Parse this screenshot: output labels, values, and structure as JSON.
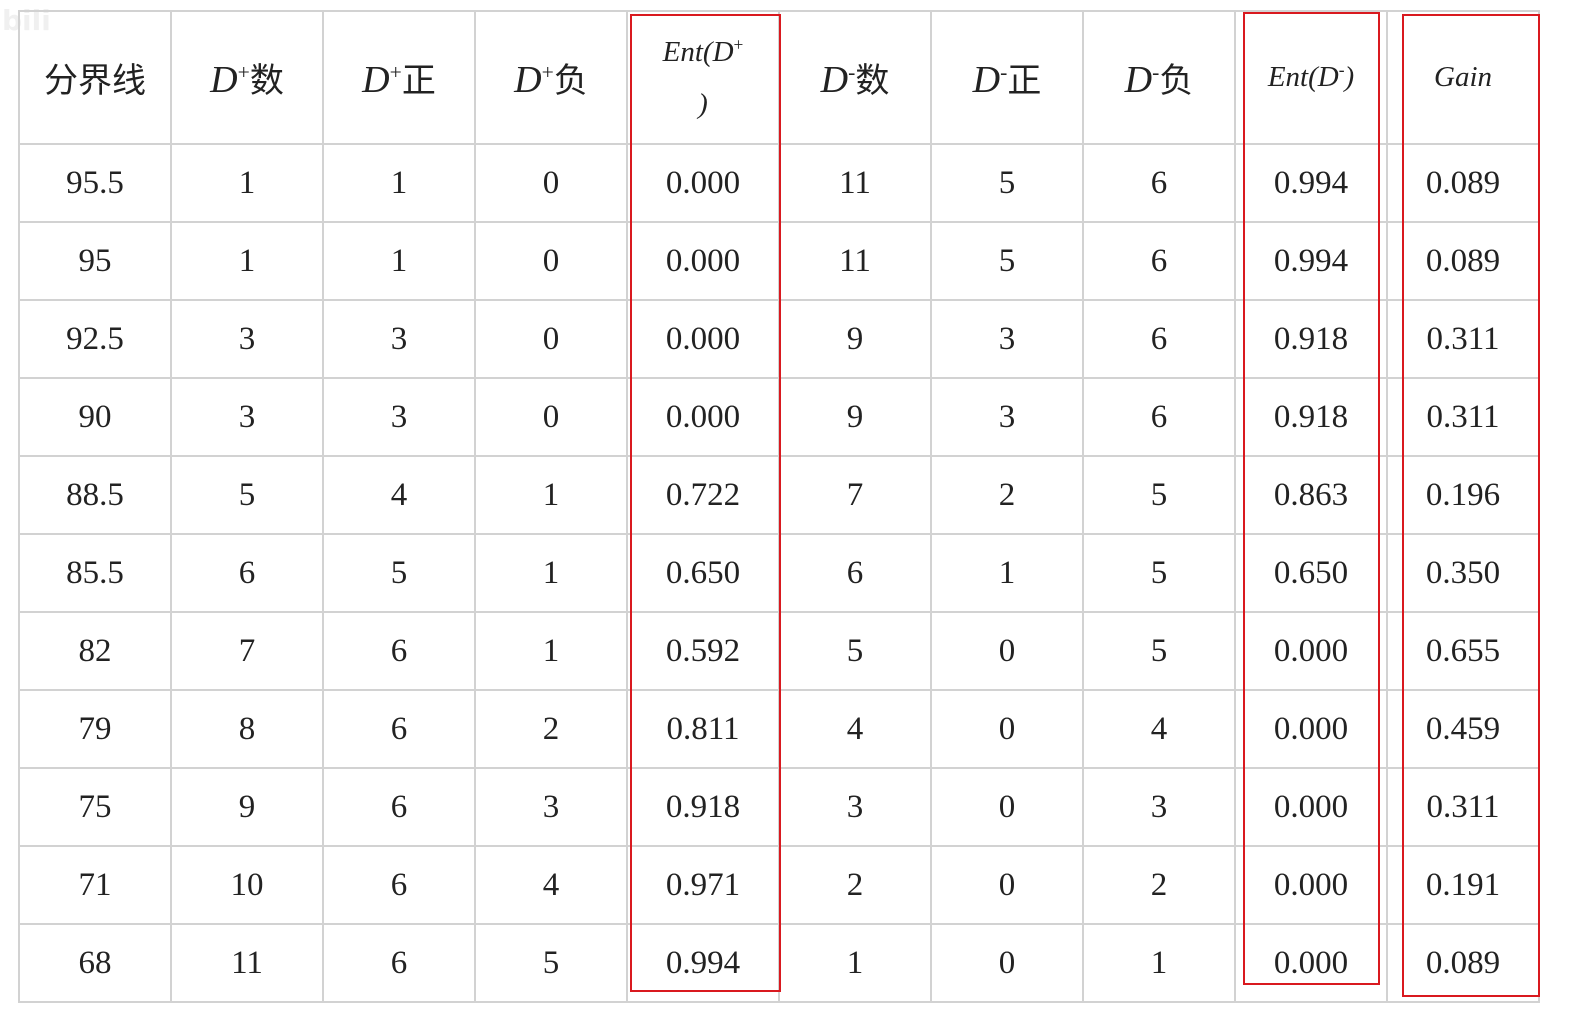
{
  "watermark": "bili",
  "header": {
    "split": "分界线",
    "dplus": "D",
    "dminus": "D",
    "plus": "+",
    "minus": "-",
    "count": "数",
    "pos": "正",
    "neg": "负",
    "ent_plus_a": "Ent(D",
    "ent_plus_b": "+",
    "ent_plus_c": ")",
    "ent_minus": "Ent(D",
    "ent_minus_sup": "-",
    "ent_minus_close": ")",
    "gain": "Gain"
  },
  "rows": [
    [
      "95.5",
      "1",
      "1",
      "0",
      "0.000",
      "11",
      "5",
      "6",
      "0.994",
      "0.089"
    ],
    [
      "95",
      "1",
      "1",
      "0",
      "0.000",
      "11",
      "5",
      "6",
      "0.994",
      "0.089"
    ],
    [
      "92.5",
      "3",
      "3",
      "0",
      "0.000",
      "9",
      "3",
      "6",
      "0.918",
      "0.311"
    ],
    [
      "90",
      "3",
      "3",
      "0",
      "0.000",
      "9",
      "3",
      "6",
      "0.918",
      "0.311"
    ],
    [
      "88.5",
      "5",
      "4",
      "1",
      "0.722",
      "7",
      "2",
      "5",
      "0.863",
      "0.196"
    ],
    [
      "85.5",
      "6",
      "5",
      "1",
      "0.650",
      "6",
      "1",
      "5",
      "0.650",
      "0.350"
    ],
    [
      "82",
      "7",
      "6",
      "1",
      "0.592",
      "5",
      "0",
      "5",
      "0.000",
      "0.655"
    ],
    [
      "79",
      "8",
      "6",
      "2",
      "0.811",
      "4",
      "0",
      "4",
      "0.000",
      "0.459"
    ],
    [
      "75",
      "9",
      "6",
      "3",
      "0.918",
      "3",
      "0",
      "3",
      "0.000",
      "0.311"
    ],
    [
      "71",
      "10",
      "6",
      "4",
      "0.971",
      "2",
      "0",
      "2",
      "0.000",
      "0.191"
    ],
    [
      "68",
      "11",
      "6",
      "5",
      "0.994",
      "1",
      "0",
      "1",
      "0.000",
      "0.089"
    ]
  ],
  "highlight_color": "#d9191f",
  "grid_color": "#d2d2d2"
}
